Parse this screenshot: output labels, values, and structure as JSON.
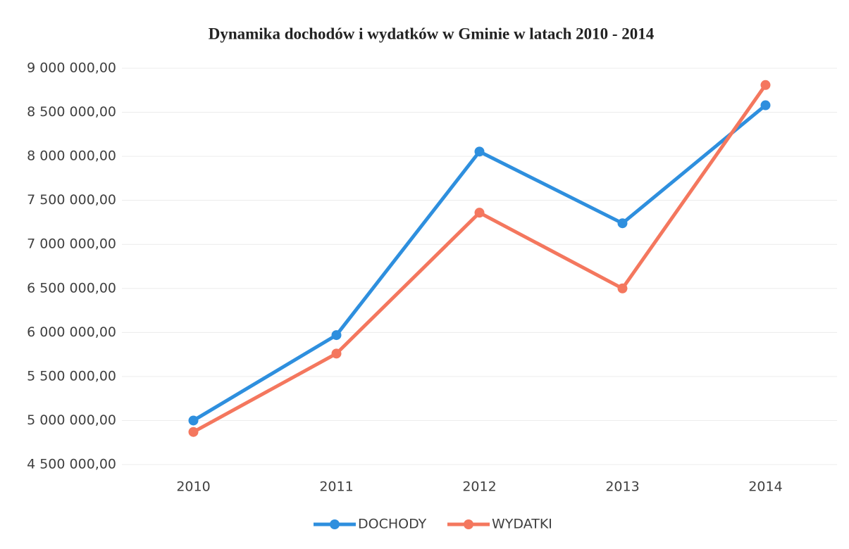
{
  "chart_data": {
    "type": "line",
    "title": "Dynamika dochodów i wydatków w Gminie w latach 2010 - 2014",
    "categories": [
      "2010",
      "2011",
      "2012",
      "2013",
      "2014"
    ],
    "series": [
      {
        "name": "DOCHODY",
        "color": "#2e8fde",
        "values": [
          5000000,
          5970000,
          8054000,
          7240000,
          8580000
        ]
      },
      {
        "name": "WYDATKI",
        "color": "#f4775e",
        "values": [
          4870000,
          5760000,
          7360000,
          6500000,
          8810000
        ]
      }
    ],
    "ylim": [
      4500000,
      9000000
    ],
    "yticks": [
      {
        "value": 4500000,
        "label": "4 500 000,00"
      },
      {
        "value": 5000000,
        "label": "5 000 000,00"
      },
      {
        "value": 5500000,
        "label": "5 500 000,00"
      },
      {
        "value": 6000000,
        "label": "6 000 000,00"
      },
      {
        "value": 6500000,
        "label": "6 500 000,00"
      },
      {
        "value": 7000000,
        "label": "7 000 000,00"
      },
      {
        "value": 7500000,
        "label": "7 500 000,00"
      },
      {
        "value": 8000000,
        "label": "8 000 000,00"
      },
      {
        "value": 8500000,
        "label": "8 500 000,00"
      },
      {
        "value": 9000000,
        "label": "9 000 000,00"
      }
    ],
    "grid": true,
    "legend": "bottom"
  }
}
